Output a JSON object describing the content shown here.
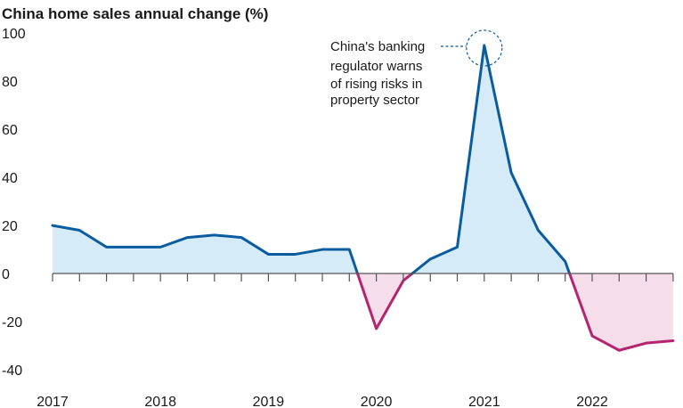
{
  "chart_data": {
    "type": "area",
    "title": "China home sales annual change (%)",
    "xlabel": "",
    "ylabel": "",
    "ylim": [
      -40,
      100
    ],
    "yticks": [
      "100",
      "80",
      "60",
      "40",
      "20",
      "0",
      "-20",
      "-40"
    ],
    "year_labels": [
      "2017",
      "2018",
      "2019",
      "2020",
      "2021",
      "2022"
    ],
    "series": [
      {
        "name": "China home sales annual change (%)",
        "quarters": [
          "2017 Q1",
          "2017 Q2",
          "2017 Q3",
          "2017 Q4",
          "2018 Q1",
          "2018 Q2",
          "2018 Q3",
          "2018 Q4",
          "2019 Q1",
          "2019 Q2",
          "2019 Q3",
          "2019 Q4",
          "2020 Q1",
          "2020 Q2",
          "2020 Q3",
          "2020 Q4",
          "2021 Q1",
          "2021 Q2",
          "2021 Q3",
          "2021 Q4",
          "2022 Q1",
          "2022 Q2",
          "2022 Q3",
          "2022 Q4"
        ],
        "values": [
          20,
          18,
          11,
          11,
          11,
          15,
          16,
          15,
          8,
          8,
          10,
          10,
          -23,
          -3,
          6,
          11,
          95,
          42,
          18,
          5,
          -26,
          -32,
          -29,
          -28
        ]
      }
    ],
    "colors": {
      "positive_line": "#0a5c9e",
      "positive_fill": "#d6ebf8",
      "negative_line": "#b5256f",
      "negative_fill": "#f5dde9"
    },
    "annotation": {
      "lines": [
        "China's banking",
        "regulator warns",
        "of rising risks in",
        "property sector"
      ],
      "point_index": 16
    }
  }
}
